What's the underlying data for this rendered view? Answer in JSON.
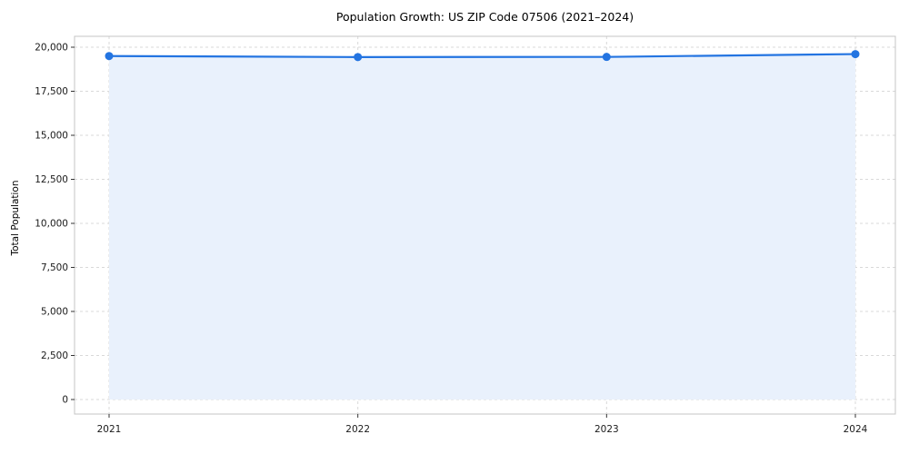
{
  "figure": {
    "title": "Population Growth: US ZIP Code 07506 (2021–2024)",
    "ylabel": "Total Population"
  },
  "chart_data": {
    "type": "line",
    "title": "Population Growth: US ZIP Code 07506 (2021–2024)",
    "xlabel": "",
    "ylabel": "Total Population",
    "x": [
      2021,
      2022,
      2023,
      2024
    ],
    "xtick_labels": [
      "2021",
      "2022",
      "2023",
      "2024"
    ],
    "series": [
      {
        "name": "Total Population",
        "values": [
          19500,
          19440,
          19450,
          19610
        ]
      }
    ],
    "ylim": [
      0,
      20000
    ],
    "yticks": [
      0,
      2500,
      5000,
      7500,
      10000,
      12500,
      15000,
      17500,
      20000
    ],
    "ytick_labels": [
      "0",
      "2,500",
      "5,000",
      "7,500",
      "10,000",
      "12,500",
      "15,000",
      "17,500",
      "20,000"
    ],
    "grid": true,
    "grid_style": "dashed",
    "legend": "none",
    "area_fill": true,
    "marker": "circle",
    "line_color": "#2374e1",
    "fill_color": "#e9f1fc",
    "grid_color": "#d9d9d9",
    "border_color": "#c4c4c4",
    "tick_color": "#333333",
    "text_color": "#1a1a1a"
  }
}
